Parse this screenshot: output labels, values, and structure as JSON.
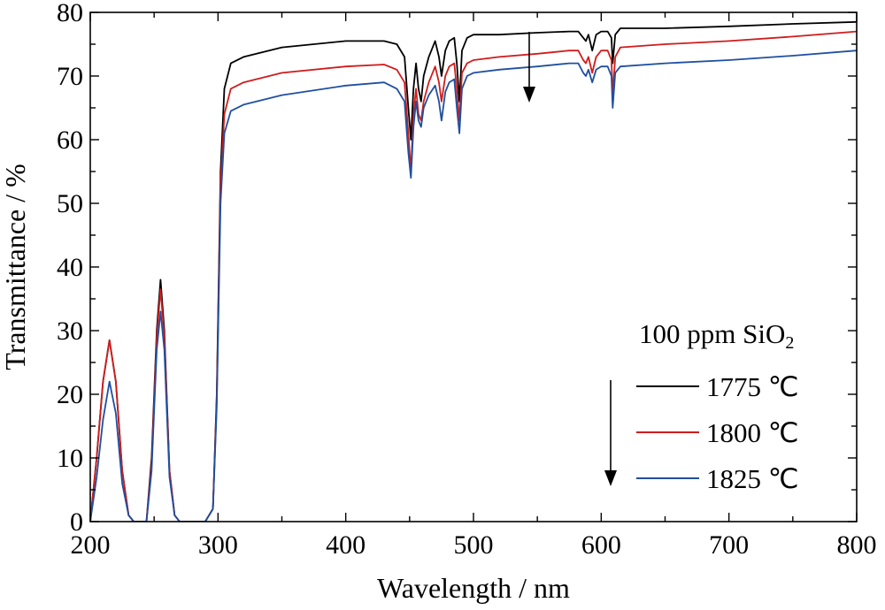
{
  "chart_data": {
    "type": "line",
    "xlabel": "Wavelength / nm",
    "ylabel": "Transmittance / %",
    "xlim": [
      200,
      800
    ],
    "ylim": [
      0,
      80
    ],
    "xticks": [
      "200",
      "300",
      "400",
      "500",
      "600",
      "700",
      "800"
    ],
    "yticks": [
      "0",
      "10",
      "20",
      "30",
      "40",
      "50",
      "60",
      "70",
      "80"
    ],
    "grid": false,
    "legend_title": "100 ppm SiO",
    "legend_title_sub": "2",
    "legend_position": "bottom-right",
    "series": [
      {
        "name": "1775 ℃",
        "color": "#000000",
        "x": [
          200,
          205,
          210,
          215,
          220,
          225,
          230,
          234,
          244,
          248,
          252,
          255,
          258,
          262,
          266,
          270,
          290,
          296,
          299,
          302,
          305,
          310,
          320,
          350,
          400,
          430,
          440,
          446,
          449,
          451,
          453,
          455,
          457,
          459,
          461,
          465,
          470,
          473,
          475,
          478,
          481,
          485,
          487,
          489,
          491,
          495,
          500,
          520,
          550,
          575,
          582,
          586,
          588,
          590,
          593,
          596,
          600,
          605,
          608,
          609,
          611,
          615,
          650,
          700,
          750,
          800
        ],
        "y": [
          0,
          10,
          22,
          28.5,
          22,
          8,
          1,
          0,
          0,
          10,
          30,
          38,
          30,
          8,
          1,
          0,
          0,
          2,
          20,
          55,
          68,
          72,
          73,
          74.5,
          75.5,
          75.5,
          75,
          73,
          65,
          60,
          68,
          72,
          68,
          66,
          70,
          73,
          75.5,
          73,
          70,
          74,
          75.5,
          76,
          72,
          66,
          74,
          76,
          76.5,
          76.5,
          76.8,
          77,
          77,
          76,
          75.5,
          76.5,
          74,
          76.5,
          77,
          77,
          76,
          72,
          76.5,
          77.5,
          77.5,
          77.8,
          78.2,
          78.5
        ]
      },
      {
        "name": "1800 ℃",
        "color": "#d01c1c",
        "x": [
          200,
          205,
          210,
          215,
          220,
          225,
          230,
          234,
          244,
          248,
          252,
          255,
          258,
          262,
          266,
          270,
          290,
          296,
          299,
          302,
          305,
          310,
          320,
          350,
          400,
          430,
          440,
          446,
          449,
          451,
          453,
          455,
          457,
          459,
          461,
          465,
          470,
          473,
          475,
          478,
          481,
          485,
          487,
          489,
          491,
          495,
          500,
          520,
          550,
          575,
          582,
          586,
          588,
          590,
          593,
          596,
          600,
          605,
          608,
          609,
          611,
          615,
          650,
          700,
          750,
          800
        ],
        "y": [
          0,
          10,
          22,
          28.5,
          22,
          8,
          1,
          0,
          0,
          9,
          29,
          36.5,
          29,
          8,
          1,
          0,
          0,
          2,
          19,
          53,
          64,
          68,
          69,
          70.5,
          71.5,
          71.8,
          71,
          69,
          61,
          55,
          64,
          68,
          64,
          63,
          66,
          69,
          71.5,
          69,
          66,
          70,
          71.5,
          72,
          68,
          63,
          70.5,
          72,
          72.5,
          73,
          73.5,
          74,
          74,
          72.5,
          72,
          73,
          70.5,
          73,
          74,
          74,
          72.5,
          67,
          73,
          74.5,
          75,
          75.5,
          76.2,
          77
        ]
      },
      {
        "name": "1825 ℃",
        "color": "#1f4fa0",
        "x": [
          200,
          205,
          210,
          215,
          220,
          225,
          230,
          234,
          244,
          248,
          252,
          255,
          258,
          262,
          266,
          270,
          290,
          296,
          299,
          302,
          305,
          310,
          320,
          350,
          400,
          430,
          440,
          446,
          449,
          451,
          453,
          455,
          457,
          459,
          461,
          465,
          470,
          473,
          475,
          478,
          481,
          485,
          487,
          489,
          491,
          495,
          500,
          520,
          550,
          575,
          582,
          586,
          588,
          590,
          593,
          596,
          600,
          605,
          608,
          609,
          611,
          615,
          650,
          700,
          750,
          800
        ],
        "y": [
          0,
          7,
          16,
          22,
          17,
          6,
          1,
          0,
          0,
          8,
          27,
          33,
          27,
          7,
          1,
          0,
          0,
          2,
          18,
          50,
          61,
          64.5,
          65.5,
          67,
          68.5,
          69,
          68,
          66,
          58,
          54,
          62,
          66,
          63,
          62,
          65,
          67,
          68.5,
          66,
          63,
          67.5,
          69,
          69.5,
          65,
          61,
          68,
          70,
          70.5,
          71,
          71.5,
          72,
          72,
          70.5,
          70,
          71,
          69,
          71,
          71.5,
          71.5,
          70,
          65,
          70.5,
          71.5,
          72,
          72.5,
          73.2,
          74
        ]
      }
    ]
  }
}
